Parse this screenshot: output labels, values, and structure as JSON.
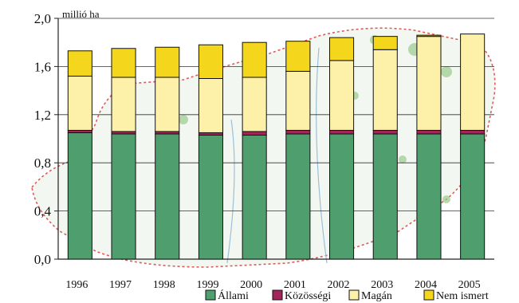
{
  "chart_data": {
    "type": "bar",
    "stacked": true,
    "unit_label": "millió ha",
    "categories": [
      "1996",
      "1997",
      "1998",
      "1999",
      "2000",
      "2001",
      "2002",
      "2003",
      "2004",
      "2005"
    ],
    "series": [
      {
        "name": "Állami",
        "color": "#4e9e6e",
        "values": [
          1.05,
          1.04,
          1.04,
          1.03,
          1.03,
          1.04,
          1.04,
          1.04,
          1.04,
          1.04
        ]
      },
      {
        "name": "Közösségi",
        "color": "#a3245b",
        "values": [
          0.02,
          0.02,
          0.02,
          0.02,
          0.03,
          0.03,
          0.03,
          0.03,
          0.03,
          0.03
        ]
      },
      {
        "name": "Magán",
        "color": "#fdf0a8",
        "values": [
          0.45,
          0.45,
          0.45,
          0.45,
          0.45,
          0.49,
          0.58,
          0.67,
          0.78,
          0.8
        ]
      },
      {
        "name": "Nem ismert",
        "color": "#f4d61c",
        "values": [
          0.21,
          0.24,
          0.25,
          0.28,
          0.29,
          0.25,
          0.19,
          0.11,
          0.01,
          0.0
        ]
      }
    ],
    "ylim": [
      0,
      2.0
    ],
    "yticks": [
      "0,0",
      "0,4",
      "0,8",
      "1,2",
      "1,6",
      "2,0"
    ],
    "grid": true,
    "legend_position": "bottom-right",
    "background": "map of Hungary (forest areas)"
  }
}
